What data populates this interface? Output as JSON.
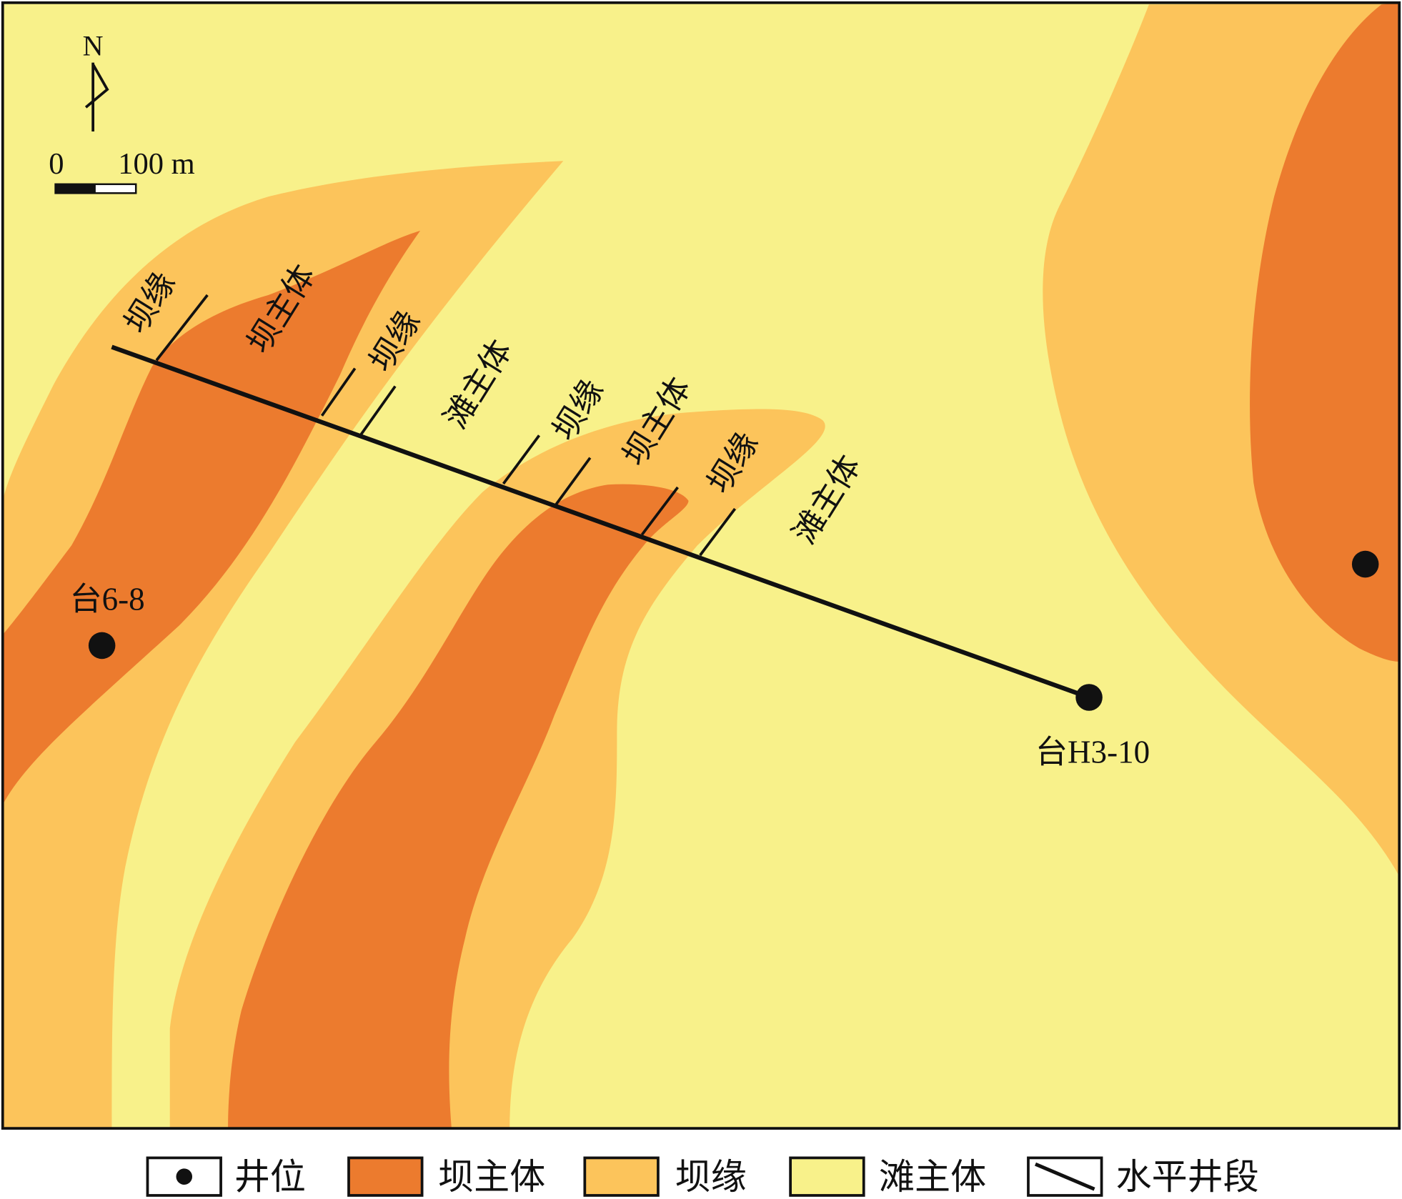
{
  "map": {
    "north": "N",
    "scale": {
      "start": "0",
      "end": "100 m"
    },
    "wells": [
      "台6-8",
      "台H3-10"
    ],
    "segments": [
      "坝缘",
      "坝主体",
      "坝缘",
      "滩主体",
      "坝缘",
      "坝主体",
      "坝缘",
      "滩主体"
    ],
    "legend": [
      "井位",
      "坝主体",
      "坝缘",
      "滩主体",
      "水平井段"
    ]
  }
}
